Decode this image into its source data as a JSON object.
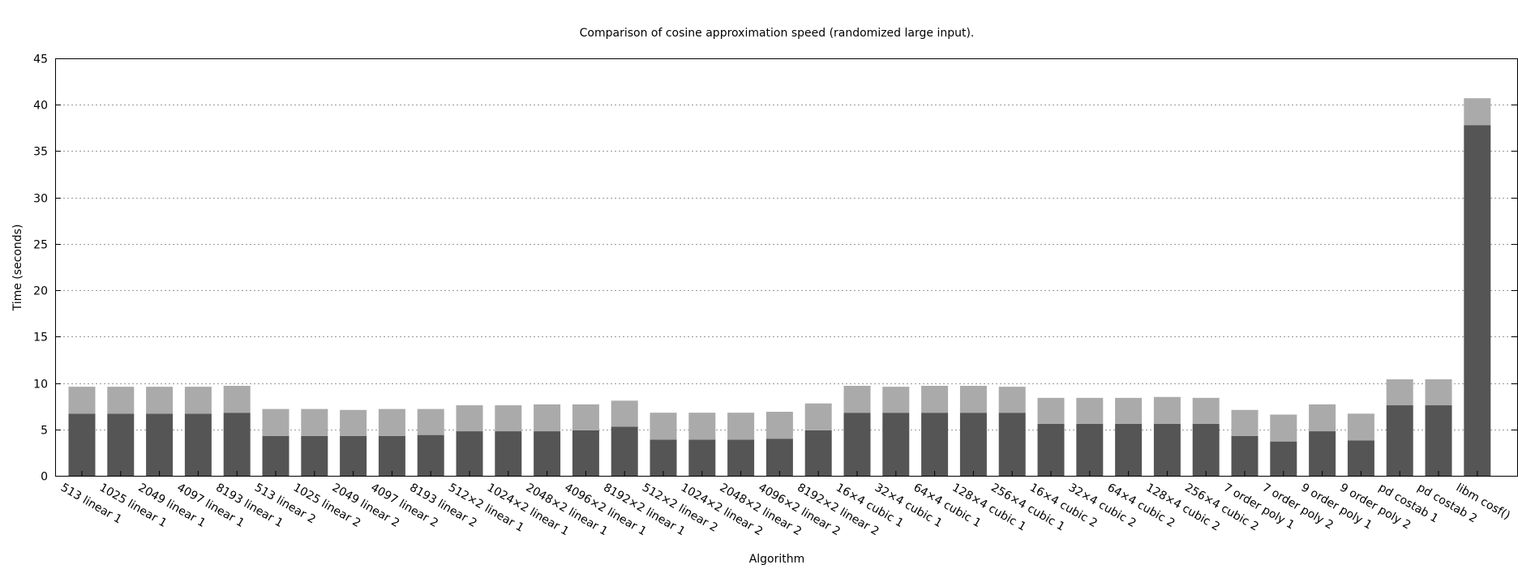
{
  "chart_data": {
    "type": "bar",
    "stacked": true,
    "title": "Comparison of cosine approximation speed (randomized large input).",
    "xlabel": "Algorithm",
    "ylabel": "Time (seconds)",
    "ylim": [
      0,
      45
    ],
    "yticks": [
      0,
      5,
      10,
      15,
      20,
      25,
      30,
      35,
      40,
      45
    ],
    "grid": true,
    "colors": {
      "lower": "#555555",
      "upper": "#aaaaaa"
    },
    "categories": [
      "513 linear 1",
      "1025 linear 1",
      "2049 linear 1",
      "4097 linear 1",
      "8193 linear 1",
      "513 linear 2",
      "1025 linear 2",
      "2049 linear 2",
      "4097 linear 2",
      "8193 linear 2",
      "512×2 linear 1",
      "1024×2 linear 1",
      "2048×2 linear 1",
      "4096×2 linear 1",
      "8192×2 linear 1",
      "512×2 linear 2",
      "1024×2 linear 2",
      "2048×2 linear 2",
      "4096×2 linear 2",
      "8192×2 linear 2",
      "16×4 cubic 1",
      "32×4 cubic 1",
      "64×4 cubic 1",
      "128×4 cubic 1",
      "256×4 cubic 1",
      "16×4 cubic 2",
      "32×4 cubic 2",
      "64×4 cubic 2",
      "128×4 cubic 2",
      "256×4 cubic 2",
      "7 order poly 1",
      "7 order poly 2",
      "9 order poly 1",
      "9 order poly 2",
      "pd costab 1",
      "pd costab 2",
      "libm cosf()"
    ],
    "series": [
      {
        "values": [
          6.7,
          6.7,
          6.7,
          6.7,
          6.8,
          4.3,
          4.3,
          4.3,
          4.3,
          4.4,
          4.8,
          4.8,
          4.8,
          4.9,
          5.3,
          3.9,
          3.9,
          3.9,
          4.0,
          4.9,
          6.8,
          6.8,
          6.8,
          6.8,
          6.8,
          5.6,
          5.6,
          5.6,
          5.6,
          5.6,
          4.3,
          3.7,
          4.8,
          3.8,
          7.6,
          7.6,
          37.8
        ]
      },
      {
        "values": [
          2.9,
          2.9,
          2.9,
          2.9,
          2.9,
          2.9,
          2.9,
          2.8,
          2.9,
          2.8,
          2.8,
          2.8,
          2.9,
          2.8,
          2.8,
          2.9,
          2.9,
          2.9,
          2.9,
          2.9,
          2.9,
          2.8,
          2.9,
          2.9,
          2.8,
          2.8,
          2.8,
          2.8,
          2.9,
          2.8,
          2.8,
          2.9,
          2.9,
          2.9,
          2.8,
          2.8,
          2.9
        ]
      }
    ]
  }
}
